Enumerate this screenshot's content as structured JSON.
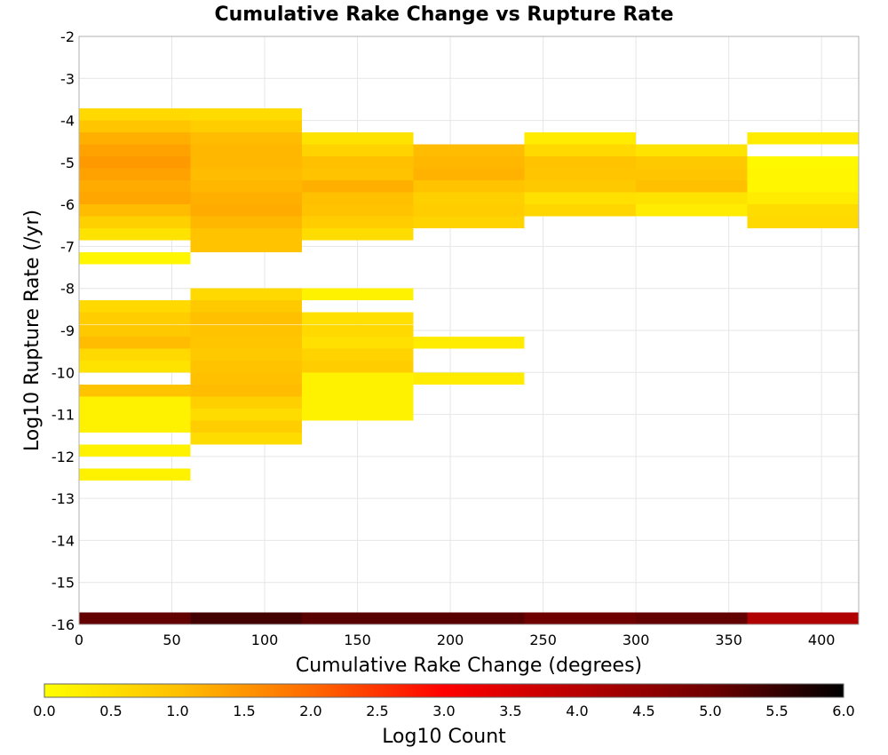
{
  "chart_data": {
    "type": "heatmap",
    "title": "Cumulative Rake Change vs Rupture Rate",
    "xlabel": "Cumulative Rake Change (degrees)",
    "ylabel": "Log10 Rupture Rate (/yr)",
    "xlim": [
      0,
      420
    ],
    "ylim": [
      -16,
      -2
    ],
    "x_ticks": [
      "0",
      "50",
      "100",
      "150",
      "200",
      "250",
      "300",
      "350",
      "400"
    ],
    "y_ticks": [
      "-2",
      "-3",
      "-4",
      "-5",
      "-6",
      "-7",
      "-8",
      "-9",
      "-10",
      "-11",
      "-12",
      "-13",
      "-14",
      "-15",
      "-16"
    ],
    "grid": true,
    "x_bin_width": 60,
    "y_bin_height": 0.2857,
    "colorbar": {
      "label": "Log10 Count",
      "min": 0,
      "max": 6,
      "ticks": [
        "0.0",
        "0.5",
        "1.0",
        "1.5",
        "2.0",
        "2.5",
        "3.0",
        "3.5",
        "4.0",
        "4.5",
        "5.0",
        "5.5",
        "6.0"
      ],
      "stops": [
        {
          "value": 0.0,
          "color": "#ffff00"
        },
        {
          "value": 1.0,
          "color": "#ffc000"
        },
        {
          "value": 2.0,
          "color": "#ff6a00"
        },
        {
          "value": 3.0,
          "color": "#ff0000"
        },
        {
          "value": 4.0,
          "color": "#b80000"
        },
        {
          "value": 5.0,
          "color": "#6e0000"
        },
        {
          "value": 6.0,
          "color": "#000000"
        }
      ]
    },
    "columns": [
      {
        "x_start": 0,
        "cells": [
          {
            "y_bottom": -4.0,
            "value": 0.6
          },
          {
            "y_bottom": -4.286,
            "value": 0.9
          },
          {
            "y_bottom": -4.571,
            "value": 1.2
          },
          {
            "y_bottom": -4.857,
            "value": 1.35
          },
          {
            "y_bottom": -5.143,
            "value": 1.45
          },
          {
            "y_bottom": -5.429,
            "value": 1.35
          },
          {
            "y_bottom": -5.714,
            "value": 1.25
          },
          {
            "y_bottom": -6.0,
            "value": 1.3
          },
          {
            "y_bottom": -6.286,
            "value": 1.05
          },
          {
            "y_bottom": -6.571,
            "value": 0.75
          },
          {
            "y_bottom": -6.857,
            "value": 0.45
          },
          {
            "y_bottom": -7.429,
            "value": 0.15
          },
          {
            "y_bottom": -8.571,
            "value": 0.6
          },
          {
            "y_bottom": -8.857,
            "value": 0.8
          },
          {
            "y_bottom": -9.143,
            "value": 0.85
          },
          {
            "y_bottom": -9.429,
            "value": 1.05
          },
          {
            "y_bottom": -9.714,
            "value": 0.6
          },
          {
            "y_bottom": -10.0,
            "value": 0.45
          },
          {
            "y_bottom": -10.571,
            "value": 0.95
          },
          {
            "y_bottom": -10.857,
            "value": 0.2
          },
          {
            "y_bottom": -11.143,
            "value": 0.2
          },
          {
            "y_bottom": -11.429,
            "value": 0.2
          },
          {
            "y_bottom": -12.0,
            "value": 0.2
          },
          {
            "y_bottom": -12.571,
            "value": 0.2
          },
          {
            "y_bottom": -16.0,
            "value": 5.1
          }
        ]
      },
      {
        "x_start": 60,
        "cells": [
          {
            "y_bottom": -4.0,
            "value": 0.55
          },
          {
            "y_bottom": -4.286,
            "value": 0.8
          },
          {
            "y_bottom": -4.571,
            "value": 1.05
          },
          {
            "y_bottom": -4.857,
            "value": 1.1
          },
          {
            "y_bottom": -5.143,
            "value": 1.1
          },
          {
            "y_bottom": -5.429,
            "value": 1.05
          },
          {
            "y_bottom": -5.714,
            "value": 1.1
          },
          {
            "y_bottom": -6.0,
            "value": 1.2
          },
          {
            "y_bottom": -6.286,
            "value": 1.25
          },
          {
            "y_bottom": -6.571,
            "value": 1.1
          },
          {
            "y_bottom": -6.857,
            "value": 0.95
          },
          {
            "y_bottom": -7.143,
            "value": 0.95
          },
          {
            "y_bottom": -8.286,
            "value": 0.6
          },
          {
            "y_bottom": -8.571,
            "value": 0.85
          },
          {
            "y_bottom": -8.857,
            "value": 1.0
          },
          {
            "y_bottom": -9.143,
            "value": 0.95
          },
          {
            "y_bottom": -9.429,
            "value": 0.9
          },
          {
            "y_bottom": -9.714,
            "value": 0.85
          },
          {
            "y_bottom": -10.0,
            "value": 0.95
          },
          {
            "y_bottom": -10.286,
            "value": 1.0
          },
          {
            "y_bottom": -10.571,
            "value": 1.05
          },
          {
            "y_bottom": -10.857,
            "value": 0.75
          },
          {
            "y_bottom": -11.143,
            "value": 0.55
          },
          {
            "y_bottom": -11.429,
            "value": 0.8
          },
          {
            "y_bottom": -11.714,
            "value": 0.55
          },
          {
            "y_bottom": -16.0,
            "value": 5.4
          }
        ]
      },
      {
        "x_start": 120,
        "cells": [
          {
            "y_bottom": -4.571,
            "value": 0.45
          },
          {
            "y_bottom": -4.857,
            "value": 0.7
          },
          {
            "y_bottom": -5.143,
            "value": 1.0
          },
          {
            "y_bottom": -5.429,
            "value": 0.95
          },
          {
            "y_bottom": -5.714,
            "value": 1.2
          },
          {
            "y_bottom": -6.0,
            "value": 1.0
          },
          {
            "y_bottom": -6.286,
            "value": 0.95
          },
          {
            "y_bottom": -6.571,
            "value": 0.8
          },
          {
            "y_bottom": -6.857,
            "value": 0.55
          },
          {
            "y_bottom": -8.286,
            "value": 0.2
          },
          {
            "y_bottom": -8.857,
            "value": 0.5
          },
          {
            "y_bottom": -9.143,
            "value": 0.6
          },
          {
            "y_bottom": -9.429,
            "value": 0.5
          },
          {
            "y_bottom": -9.714,
            "value": 0.7
          },
          {
            "y_bottom": -10.0,
            "value": 0.8
          },
          {
            "y_bottom": -10.286,
            "value": 0.2
          },
          {
            "y_bottom": -10.571,
            "value": 0.2
          },
          {
            "y_bottom": -10.857,
            "value": 0.2
          },
          {
            "y_bottom": -11.143,
            "value": 0.2
          },
          {
            "y_bottom": -16.0,
            "value": 5.2
          }
        ]
      },
      {
        "x_start": 180,
        "cells": [
          {
            "y_bottom": -4.857,
            "value": 1.05
          },
          {
            "y_bottom": -5.143,
            "value": 1.1
          },
          {
            "y_bottom": -5.429,
            "value": 1.15
          },
          {
            "y_bottom": -5.714,
            "value": 0.95
          },
          {
            "y_bottom": -6.0,
            "value": 0.75
          },
          {
            "y_bottom": -6.286,
            "value": 0.8
          },
          {
            "y_bottom": -6.571,
            "value": 0.7
          },
          {
            "y_bottom": -9.429,
            "value": 0.3
          },
          {
            "y_bottom": -10.286,
            "value": 0.3
          },
          {
            "y_bottom": -16.0,
            "value": 5.2
          }
        ]
      },
      {
        "x_start": 240,
        "cells": [
          {
            "y_bottom": -4.571,
            "value": 0.3
          },
          {
            "y_bottom": -4.857,
            "value": 0.6
          },
          {
            "y_bottom": -5.143,
            "value": 0.95
          },
          {
            "y_bottom": -5.429,
            "value": 0.9
          },
          {
            "y_bottom": -5.714,
            "value": 0.85
          },
          {
            "y_bottom": -6.0,
            "value": 0.5
          },
          {
            "y_bottom": -6.286,
            "value": 0.65
          },
          {
            "y_bottom": -16.0,
            "value": 5.0
          }
        ]
      },
      {
        "x_start": 300,
        "cells": [
          {
            "y_bottom": -4.857,
            "value": 0.45
          },
          {
            "y_bottom": -5.143,
            "value": 0.85
          },
          {
            "y_bottom": -5.429,
            "value": 0.9
          },
          {
            "y_bottom": -5.714,
            "value": 1.0
          },
          {
            "y_bottom": -6.0,
            "value": 0.45
          },
          {
            "y_bottom": -6.286,
            "value": 0.3
          },
          {
            "y_bottom": -16.0,
            "value": 5.1
          }
        ]
      },
      {
        "x_start": 360,
        "cells": [
          {
            "y_bottom": -4.571,
            "value": 0.3
          },
          {
            "y_bottom": -5.143,
            "value": 0.1
          },
          {
            "y_bottom": -5.429,
            "value": 0.15
          },
          {
            "y_bottom": -5.714,
            "value": 0.15
          },
          {
            "y_bottom": -6.0,
            "value": 0.3
          },
          {
            "y_bottom": -6.286,
            "value": 0.55
          },
          {
            "y_bottom": -6.571,
            "value": 0.6
          },
          {
            "y_bottom": -16.0,
            "value": 4.1
          }
        ]
      }
    ]
  }
}
